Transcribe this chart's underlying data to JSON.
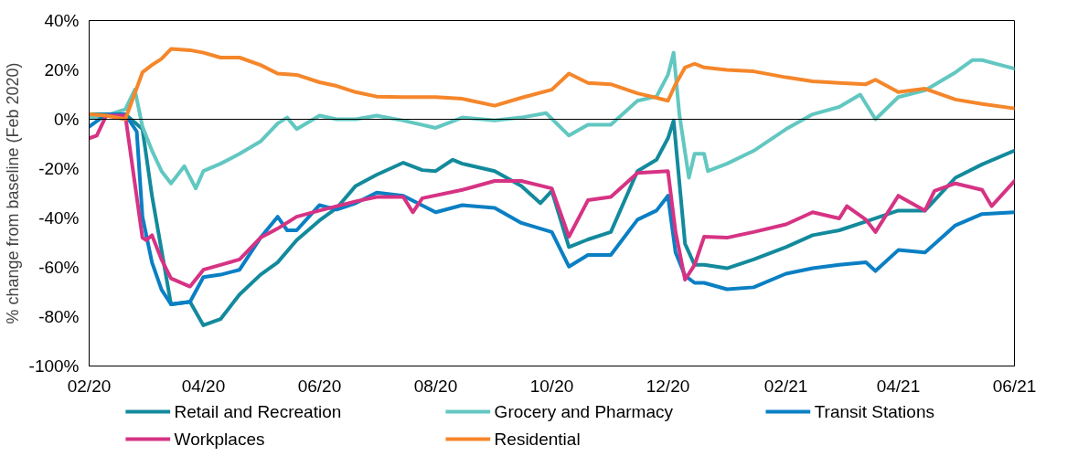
{
  "chart_data": {
    "type": "line",
    "ylabel": "% change from baseline (Feb 2020)",
    "legend": "bottom",
    "grid": false,
    "line_style": "solid",
    "marker": "none",
    "xlim": [
      "2020-02-01",
      "2021-06-01"
    ],
    "xticks": [
      {
        "value": "2020-02-01",
        "label": "02/20"
      },
      {
        "value": "2020-04-01",
        "label": "04/20"
      },
      {
        "value": "2020-06-01",
        "label": "06/20"
      },
      {
        "value": "2020-08-01",
        "label": "08/20"
      },
      {
        "value": "2020-10-01",
        "label": "10/20"
      },
      {
        "value": "2020-12-01",
        "label": "12/20"
      },
      {
        "value": "2021-02-01",
        "label": "02/21"
      },
      {
        "value": "2021-04-01",
        "label": "04/21"
      },
      {
        "value": "2021-06-01",
        "label": "06/21"
      }
    ],
    "ylim": [
      -100,
      40
    ],
    "yticks": [
      {
        "value": -100,
        "label": "-100%"
      },
      {
        "value": -80,
        "label": "-80%"
      },
      {
        "value": -60,
        "label": "-60%"
      },
      {
        "value": -40,
        "label": "-40%"
      },
      {
        "value": -20,
        "label": "-20%"
      },
      {
        "value": 0,
        "label": "0%"
      },
      {
        "value": 20,
        "label": "20%"
      },
      {
        "value": 40,
        "label": "40%"
      }
    ],
    "ref_lines": [
      {
        "axis": "y",
        "value": 0,
        "color": "#000000"
      }
    ],
    "series": [
      {
        "name": "Retail and Recreation",
        "color": "#138a9c",
        "x": [
          "2020-02-01",
          "2020-02-20",
          "2020-02-29",
          "2020-03-05",
          "2020-03-10",
          "2020-03-15",
          "2020-03-25",
          "2020-04-01",
          "2020-04-10",
          "2020-04-20",
          "2020-05-01",
          "2020-05-10",
          "2020-05-20",
          "2020-06-01",
          "2020-06-10",
          "2020-06-20",
          "2020-07-01",
          "2020-07-15",
          "2020-07-25",
          "2020-08-01",
          "2020-08-10",
          "2020-08-15",
          "2020-09-01",
          "2020-09-15",
          "2020-09-25",
          "2020-10-01",
          "2020-10-10",
          "2020-10-20",
          "2020-11-01",
          "2020-11-15",
          "2020-11-25",
          "2020-12-01",
          "2020-12-04",
          "2020-12-10",
          "2020-12-15",
          "2020-12-20",
          "2021-01-01",
          "2021-01-15",
          "2021-02-01",
          "2021-02-15",
          "2021-03-01",
          "2021-03-15",
          "2021-04-01",
          "2021-04-15",
          "2021-05-01",
          "2021-05-15",
          "2021-06-01"
        ],
        "values": [
          2,
          2,
          -4,
          -31,
          -53,
          -75,
          -74,
          -83.5,
          -81,
          -71,
          -63,
          -58,
          -49,
          -41,
          -36,
          -27,
          -22.5,
          -17.6,
          -20.6,
          -21,
          -16.4,
          -18,
          -21,
          -27,
          -34,
          -29,
          -51.8,
          -48.7,
          -45.7,
          -21,
          -16.4,
          -7.7,
          -0.5,
          -50.5,
          -59,
          -59,
          -60.4,
          -56.8,
          -51.8,
          -47,
          -45,
          -41.4,
          -37,
          -37,
          -23.7,
          -18.3,
          -12.7
        ]
      },
      {
        "name": "Grocery and Pharmacy",
        "color": "#62c7c1",
        "x": [
          "2020-02-01",
          "2020-02-10",
          "2020-02-20",
          "2020-02-25",
          "2020-02-29",
          "2020-03-05",
          "2020-03-10",
          "2020-03-15",
          "2020-03-22",
          "2020-03-28",
          "2020-04-01",
          "2020-04-10",
          "2020-04-20",
          "2020-05-01",
          "2020-05-10",
          "2020-05-15",
          "2020-05-20",
          "2020-06-01",
          "2020-06-10",
          "2020-06-20",
          "2020-07-01",
          "2020-07-15",
          "2020-08-01",
          "2020-08-15",
          "2020-09-01",
          "2020-09-15",
          "2020-09-28",
          "2020-10-10",
          "2020-10-20",
          "2020-11-01",
          "2020-11-15",
          "2020-11-25",
          "2020-12-01",
          "2020-12-04",
          "2020-12-07",
          "2020-12-12",
          "2020-12-15",
          "2020-12-20",
          "2020-12-22",
          "2021-01-01",
          "2021-01-15",
          "2021-02-01",
          "2021-02-15",
          "2021-03-01",
          "2021-03-12",
          "2021-03-20",
          "2021-04-01",
          "2021-04-15",
          "2021-05-01",
          "2021-05-10",
          "2021-05-15",
          "2021-06-01"
        ],
        "values": [
          0.5,
          1.5,
          4,
          12,
          -3,
          -12.7,
          -21,
          -26,
          -19,
          -28,
          -21,
          -18,
          -14,
          -9,
          -1.7,
          0.7,
          -4,
          1.5,
          0,
          0,
          1.5,
          -0.5,
          -3.5,
          0.7,
          -0.5,
          0.7,
          2.5,
          -6.6,
          -2.2,
          -2.2,
          7.5,
          9.2,
          18,
          27,
          2,
          -23.7,
          -14,
          -14,
          -21,
          -18,
          -12.8,
          -4,
          2,
          5,
          10,
          0,
          9,
          11.7,
          19,
          24,
          24,
          20.5
        ]
      },
      {
        "name": "Transit Stations",
        "color": "#0a7fc4",
        "x": [
          "2020-02-01",
          "2020-02-10",
          "2020-02-20",
          "2020-02-26",
          "2020-02-29",
          "2020-03-05",
          "2020-03-10",
          "2020-03-15",
          "2020-03-25",
          "2020-04-01",
          "2020-04-10",
          "2020-04-20",
          "2020-05-01",
          "2020-05-10",
          "2020-05-15",
          "2020-05-20",
          "2020-06-01",
          "2020-06-10",
          "2020-06-20",
          "2020-07-01",
          "2020-07-15",
          "2020-08-01",
          "2020-08-15",
          "2020-09-01",
          "2020-09-15",
          "2020-10-01",
          "2020-10-10",
          "2020-10-20",
          "2020-11-01",
          "2020-11-15",
          "2020-11-25",
          "2020-12-01",
          "2020-12-05",
          "2020-12-10",
          "2020-12-15",
          "2020-12-20",
          "2021-01-01",
          "2021-01-15",
          "2021-02-01",
          "2021-02-15",
          "2021-03-01",
          "2021-03-15",
          "2021-03-20",
          "2021-04-01",
          "2021-04-15",
          "2021-05-01",
          "2021-05-15",
          "2021-06-01"
        ],
        "values": [
          -3,
          2,
          2,
          -5,
          -39.5,
          -58,
          -69,
          -75,
          -74,
          -64,
          -63,
          -61,
          -48,
          -39.5,
          -45,
          -45,
          -34.8,
          -36.6,
          -34,
          -29.7,
          -31,
          -37.7,
          -34.8,
          -35.9,
          -42,
          -45.7,
          -59.7,
          -55,
          -55,
          -40.7,
          -37,
          -31,
          -54,
          -63.4,
          -66.3,
          -66.3,
          -68.9,
          -68.1,
          -62.6,
          -60.4,
          -59,
          -58,
          -61.5,
          -53,
          -54,
          -43,
          -38.4,
          -37.7
        ]
      },
      {
        "name": "Workplaces",
        "color": "#d63384",
        "x": [
          "2020-02-01",
          "2020-02-05",
          "2020-02-10",
          "2020-02-20",
          "2020-02-29",
          "2020-03-02",
          "2020-03-05",
          "2020-03-10",
          "2020-03-15",
          "2020-03-25",
          "2020-04-01",
          "2020-04-10",
          "2020-04-20",
          "2020-05-01",
          "2020-05-10",
          "2020-05-20",
          "2020-06-01",
          "2020-06-20",
          "2020-07-01",
          "2020-07-15",
          "2020-07-20",
          "2020-07-25",
          "2020-08-15",
          "2020-09-01",
          "2020-09-15",
          "2020-10-01",
          "2020-10-10",
          "2020-10-20",
          "2020-11-01",
          "2020-11-15",
          "2020-12-01",
          "2020-12-05",
          "2020-12-10",
          "2020-12-15",
          "2020-12-20",
          "2021-01-01",
          "2021-01-15",
          "2021-02-01",
          "2021-02-15",
          "2021-03-01",
          "2021-03-05",
          "2021-03-15",
          "2021-03-20",
          "2021-04-01",
          "2021-04-15",
          "2021-04-20",
          "2021-05-01",
          "2021-05-15",
          "2021-05-20",
          "2021-06-01"
        ],
        "values": [
          -7.7,
          -6.6,
          1.5,
          1.5,
          -48,
          -49,
          -47,
          -56.8,
          -64.5,
          -67.8,
          -61,
          -59,
          -56.8,
          -48,
          -44.3,
          -39.5,
          -37,
          -33.3,
          -31.5,
          -31.5,
          -37.7,
          -32,
          -28.6,
          -25,
          -25,
          -28,
          -47.6,
          -32.8,
          -31.5,
          -21.8,
          -21,
          -45.7,
          -65,
          -59,
          -47.6,
          -48,
          -45.7,
          -42.6,
          -37.7,
          -40.2,
          -35.2,
          -40.7,
          -45.7,
          -31,
          -37,
          -29,
          -26,
          -28.6,
          -35.2,
          -25
        ]
      },
      {
        "name": "Residential",
        "color": "#f5862a",
        "x": [
          "2020-02-01",
          "2020-02-10",
          "2020-02-20",
          "2020-02-29",
          "2020-03-05",
          "2020-03-10",
          "2020-03-15",
          "2020-03-25",
          "2020-04-01",
          "2020-04-10",
          "2020-04-20",
          "2020-05-01",
          "2020-05-10",
          "2020-05-20",
          "2020-06-01",
          "2020-06-10",
          "2020-06-20",
          "2020-07-01",
          "2020-07-15",
          "2020-08-01",
          "2020-08-15",
          "2020-09-01",
          "2020-09-15",
          "2020-10-01",
          "2020-10-10",
          "2020-10-20",
          "2020-11-01",
          "2020-11-15",
          "2020-11-25",
          "2020-12-01",
          "2020-12-05",
          "2020-12-10",
          "2020-12-15",
          "2020-12-20",
          "2021-01-01",
          "2021-01-15",
          "2021-02-01",
          "2021-02-15",
          "2021-03-01",
          "2021-03-15",
          "2021-03-20",
          "2021-04-01",
          "2021-04-15",
          "2021-05-01",
          "2021-05-15",
          "2021-06-01"
        ],
        "values": [
          2,
          1.5,
          0,
          19,
          22,
          24.5,
          28.5,
          28,
          27,
          25,
          25,
          22,
          18.5,
          18,
          15,
          13.5,
          11,
          9.2,
          9,
          9,
          8.3,
          5.5,
          8.7,
          12,
          18.5,
          14.7,
          14.2,
          10.5,
          8.7,
          7.5,
          14.2,
          21,
          22.5,
          21,
          20,
          19.4,
          17,
          15.4,
          14.7,
          14.2,
          16,
          11,
          12.4,
          8,
          6.2,
          4.4
        ]
      }
    ]
  }
}
